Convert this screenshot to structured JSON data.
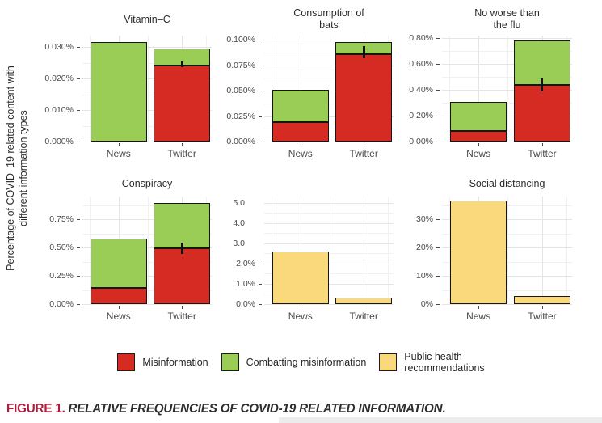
{
  "figure": {
    "y_axis_label": "Percentage of COVID–19 related content with\ndifferent information types"
  },
  "colors": {
    "misinformation": "#d62b22",
    "combatting_misinformation": "#9acd55",
    "public_health_recommendations": "#f9d97c",
    "caption_label": "#ae1e3c"
  },
  "legend": {
    "items": [
      {
        "label": "Misinformation",
        "color_key": "misinformation"
      },
      {
        "label": "Combatting misinformation",
        "color_key": "combatting_misinformation"
      },
      {
        "label": "Public health\nrecommendations",
        "color_key": "public_health_recommendations"
      }
    ]
  },
  "caption": {
    "label": "FIGURE 1.",
    "text": "RELATIVE FREQUENCIES OF COVID-19 RELATED INFORMATION."
  },
  "chart_data": [
    {
      "type": "bar",
      "stacked": true,
      "title": "Vitamin–C",
      "categories": [
        "News",
        "Twitter"
      ],
      "series": [
        {
          "name": "Misinformation",
          "color_key": "misinformation",
          "values": [
            0,
            0.024
          ]
        },
        {
          "name": "Combatting misinformation",
          "color_key": "combatting_misinformation",
          "values": [
            0.0315,
            0.0055
          ]
        }
      ],
      "error_bars": [
        {
          "category": "Twitter",
          "low": 0.0236,
          "high": 0.0254
        }
      ],
      "ylim": [
        0,
        0.0336
      ],
      "yticks": [
        {
          "value": 0,
          "label": "0.000%"
        },
        {
          "value": 0.01,
          "label": "0.010%"
        },
        {
          "value": 0.02,
          "label": "0.020%"
        },
        {
          "value": 0.03,
          "label": "0.030%"
        }
      ]
    },
    {
      "type": "bar",
      "stacked": true,
      "title": "Consumption of\nbats",
      "categories": [
        "News",
        "Twitter"
      ],
      "series": [
        {
          "name": "Misinformation",
          "color_key": "misinformation",
          "values": [
            0.019,
            0.086
          ]
        },
        {
          "name": "Combatting misinformation",
          "color_key": "combatting_misinformation",
          "values": [
            0.032,
            0.012
          ]
        }
      ],
      "error_bars": [
        {
          "category": "Twitter",
          "low": 0.082,
          "high": 0.094
        }
      ],
      "ylim": [
        0,
        0.104
      ],
      "yticks": [
        {
          "value": 0,
          "label": "0.000%"
        },
        {
          "value": 0.025,
          "label": "0.025%"
        },
        {
          "value": 0.05,
          "label": "0.050%"
        },
        {
          "value": 0.075,
          "label": "0.075%"
        },
        {
          "value": 0.1,
          "label": "0.100%"
        }
      ]
    },
    {
      "type": "bar",
      "stacked": true,
      "title": "No worse than\nthe flu",
      "categories": [
        "News",
        "Twitter"
      ],
      "series": [
        {
          "name": "Misinformation",
          "color_key": "misinformation",
          "values": [
            0.08,
            0.44
          ]
        },
        {
          "name": "Combatting misinformation",
          "color_key": "combatting_misinformation",
          "values": [
            0.23,
            0.34
          ]
        }
      ],
      "error_bars": [
        {
          "category": "Twitter",
          "low": 0.39,
          "high": 0.49
        }
      ],
      "ylim": [
        0,
        0.82
      ],
      "yticks": [
        {
          "value": 0,
          "label": "0.00%"
        },
        {
          "value": 0.2,
          "label": "0.20%"
        },
        {
          "value": 0.4,
          "label": "0.40%"
        },
        {
          "value": 0.6,
          "label": "0.60%"
        },
        {
          "value": 0.8,
          "label": "0.80%"
        }
      ]
    },
    {
      "type": "bar",
      "stacked": true,
      "title": "Conspiracy",
      "categories": [
        "News",
        "Twitter"
      ],
      "series": [
        {
          "name": "Misinformation",
          "color_key": "misinformation",
          "values": [
            0.14,
            0.49
          ]
        },
        {
          "name": "Combatting misinformation",
          "color_key": "combatting_misinformation",
          "values": [
            0.44,
            0.4
          ]
        }
      ],
      "error_bars": [
        {
          "category": "Twitter",
          "low": 0.44,
          "high": 0.545
        }
      ],
      "ylim": [
        0,
        0.95
      ],
      "yticks": [
        {
          "value": 0,
          "label": "0.00%"
        },
        {
          "value": 0.25,
          "label": "0.25%"
        },
        {
          "value": 0.5,
          "label": "0.50%"
        },
        {
          "value": 0.75,
          "label": "0.75%"
        }
      ]
    },
    {
      "type": "bar",
      "stacked": true,
      "title": "",
      "categories": [
        "News",
        "Twitter"
      ],
      "series": [
        {
          "name": "Public health recommendations",
          "color_key": "public_health_recommendations",
          "values": [
            2.6,
            0.3
          ]
        }
      ],
      "error_bars": [],
      "ylim": [
        0,
        5.3
      ],
      "yticks": [
        {
          "value": 0,
          "label": "0.0%"
        },
        {
          "value": 1,
          "label": "1.0%"
        },
        {
          "value": 2,
          "label": "2.0%"
        },
        {
          "value": 3,
          "label": "3.0",
          "tick_mark": false
        },
        {
          "value": 4,
          "label": "4.0",
          "tick_mark": false
        },
        {
          "value": 5,
          "label": "5.0",
          "tick_mark": false
        }
      ]
    },
    {
      "type": "bar",
      "stacked": true,
      "title": "Social distancing",
      "categories": [
        "News",
        "Twitter"
      ],
      "series": [
        {
          "name": "Public health recommendations",
          "color_key": "public_health_recommendations",
          "values": [
            36.5,
            3
          ]
        }
      ],
      "error_bars": [],
      "ylim": [
        0,
        38
      ],
      "yticks": [
        {
          "value": 0,
          "label": "0%"
        },
        {
          "value": 10,
          "label": "10%"
        },
        {
          "value": 20,
          "label": "20%"
        },
        {
          "value": 30,
          "label": "30%"
        }
      ]
    }
  ]
}
